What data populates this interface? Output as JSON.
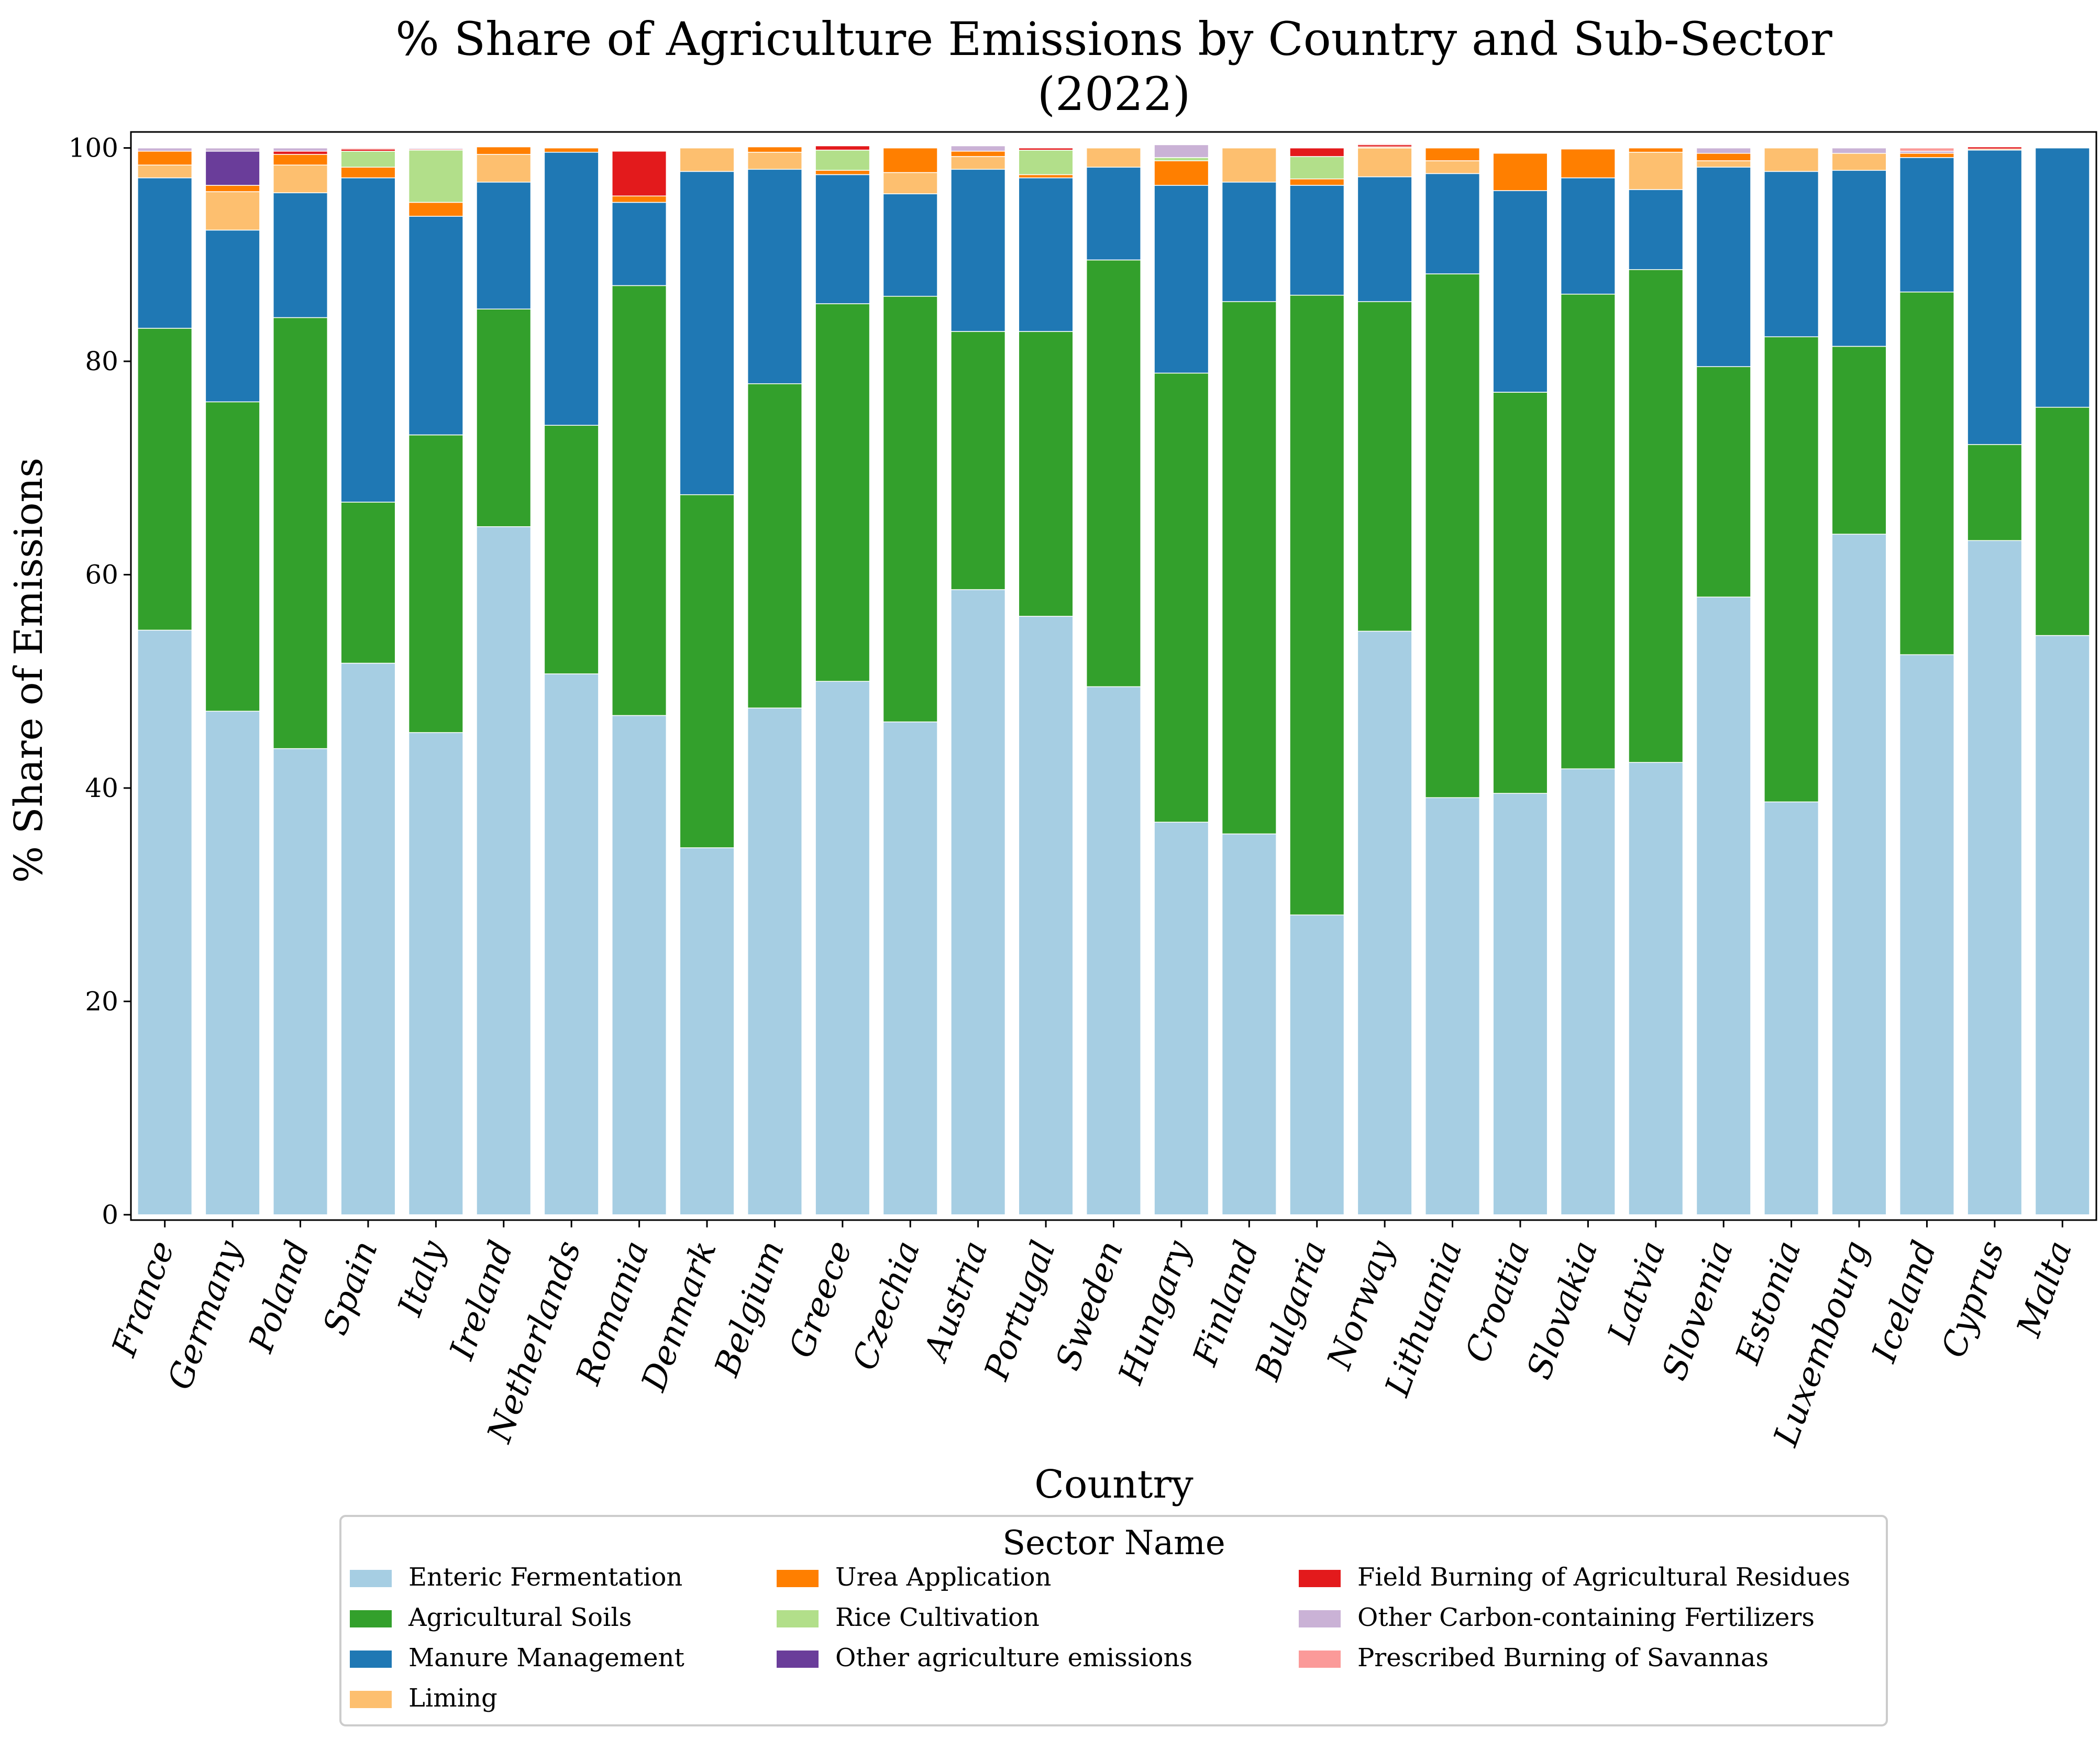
{
  "chart_data": {
    "type": "bar",
    "stacked": true,
    "title": "% Share of Agriculture Emissions by Country and Sub-Sector",
    "subtitle": "(2022)",
    "xlabel": "Country",
    "ylabel": "% Share of Emissions",
    "ylim": [
      0,
      100
    ],
    "yticks": [
      0,
      20,
      40,
      60,
      80,
      100
    ],
    "grid": false,
    "legend_title": "Sector Name",
    "legend_position": "bottom-center",
    "categories": [
      "France",
      "Germany",
      "Poland",
      "Spain",
      "Italy",
      "Ireland",
      "Netherlands",
      "Romania",
      "Denmark",
      "Belgium",
      "Greece",
      "Czechia",
      "Austria",
      "Portugal",
      "Sweden",
      "Hungary",
      "Finland",
      "Bulgaria",
      "Norway",
      "Lithuania",
      "Croatia",
      "Slovakia",
      "Latvia",
      "Slovenia",
      "Estonia",
      "Luxembourg",
      "Iceland",
      "Cyprus",
      "Malta"
    ],
    "series": [
      {
        "name": "Enteric Fermentation",
        "color": "#a6cee3",
        "values": [
          54.8,
          47.2,
          43.7,
          51.7,
          45.2,
          64.5,
          50.7,
          46.8,
          34.4,
          47.5,
          50.0,
          46.2,
          58.6,
          56.1,
          49.5,
          36.8,
          35.7,
          28.1,
          54.7,
          39.1,
          39.5,
          41.8,
          42.4,
          57.9,
          38.7,
          63.8,
          52.5,
          63.2,
          54.3
        ]
      },
      {
        "name": "Agricultural Soils",
        "color": "#33a02c",
        "values": [
          28.3,
          29.0,
          40.4,
          15.1,
          27.9,
          20.4,
          23.3,
          40.3,
          33.1,
          30.4,
          35.4,
          39.9,
          24.2,
          26.7,
          40.0,
          42.1,
          49.9,
          58.1,
          30.9,
          49.1,
          37.6,
          44.5,
          46.2,
          21.6,
          43.6,
          17.6,
          34.0,
          9.0,
          21.4
        ]
      },
      {
        "name": "Manure Management",
        "color": "#1f78b4",
        "values": [
          14.1,
          16.1,
          11.7,
          30.4,
          20.5,
          11.9,
          25.6,
          7.8,
          30.3,
          20.1,
          12.1,
          9.6,
          15.2,
          14.4,
          8.7,
          17.6,
          11.2,
          10.3,
          11.7,
          9.4,
          18.9,
          10.9,
          7.5,
          18.7,
          15.5,
          16.5,
          12.6,
          27.6,
          24.3
        ]
      },
      {
        "name": "Liming",
        "color": "#fdbf6f",
        "values": [
          1.2,
          3.6,
          2.6,
          0.0,
          0.0,
          2.6,
          0.0,
          0.0,
          2.2,
          1.6,
          0.0,
          2.0,
          1.2,
          0.0,
          1.8,
          0.0,
          3.2,
          0.0,
          2.7,
          1.2,
          0.0,
          0.0,
          3.5,
          0.6,
          2.2,
          1.6,
          0.0,
          0.0,
          0.0
        ]
      },
      {
        "name": "Urea Application",
        "color": "#ff7f00",
        "values": [
          1.3,
          0.6,
          1.0,
          1.0,
          1.3,
          0.7,
          0.4,
          0.6,
          0.0,
          0.5,
          0.4,
          2.3,
          0.5,
          0.3,
          0.0,
          2.3,
          0.0,
          0.6,
          0.1,
          1.2,
          3.5,
          2.7,
          0.4,
          0.7,
          0.0,
          0.0,
          0.4,
          0.1,
          0.0
        ]
      },
      {
        "name": "Rice Cultivation",
        "color": "#b2df8a",
        "values": [
          0.0,
          0.0,
          0.0,
          1.5,
          4.9,
          0.0,
          0.0,
          0.0,
          0.0,
          0.0,
          1.9,
          0.0,
          0.0,
          2.3,
          0.0,
          0.3,
          0.0,
          2.1,
          0.0,
          0.0,
          0.0,
          0.0,
          0.0,
          0.0,
          0.0,
          0.0,
          0.0,
          0.0,
          0.0
        ]
      },
      {
        "name": "Other agriculture emissions",
        "color": "#6a3d9a",
        "values": [
          0.0,
          3.2,
          0.0,
          0.0,
          0.0,
          0.0,
          0.0,
          0.0,
          0.0,
          0.0,
          0.0,
          0.0,
          0.0,
          0.0,
          0.0,
          0.0,
          0.0,
          0.0,
          0.0,
          0.0,
          0.0,
          0.0,
          0.0,
          0.0,
          0.0,
          0.0,
          0.0,
          0.0,
          0.0
        ]
      },
      {
        "name": "Field Burning of Agricultural Residues",
        "color": "#e31a1c",
        "values": [
          0.0,
          0.0,
          0.3,
          0.2,
          0.1,
          0.0,
          0.0,
          4.2,
          0.0,
          0.0,
          0.4,
          0.0,
          0.0,
          0.2,
          0.0,
          0.0,
          0.0,
          0.8,
          0.2,
          0.0,
          0.0,
          0.0,
          0.0,
          0.0,
          0.0,
          0.0,
          0.0,
          0.2,
          0.0
        ]
      },
      {
        "name": "Other Carbon-containing Fertilizers",
        "color": "#cab2d6",
        "values": [
          0.3,
          0.3,
          0.3,
          0.0,
          0.1,
          0.0,
          0.0,
          0.0,
          0.0,
          0.0,
          0.0,
          0.0,
          0.5,
          0.0,
          0.0,
          1.2,
          0.0,
          0.0,
          0.0,
          0.0,
          0.0,
          0.0,
          0.0,
          0.5,
          0.0,
          0.5,
          0.2,
          0.0,
          0.0
        ]
      },
      {
        "name": "Prescribed Burning of Savannas",
        "color": "#fb9a99",
        "values": [
          0.0,
          0.0,
          0.0,
          0.1,
          0.0,
          0.0,
          0.0,
          0.0,
          0.0,
          0.0,
          0.0,
          0.0,
          0.0,
          0.0,
          0.0,
          0.0,
          0.0,
          0.0,
          0.1,
          0.0,
          0.0,
          0.0,
          0.0,
          0.0,
          0.0,
          0.0,
          0.3,
          0.0,
          0.0
        ]
      }
    ],
    "legend_columns": [
      [
        "Enteric Fermentation",
        "Agricultural Soils",
        "Manure Management",
        "Liming"
      ],
      [
        "Urea Application",
        "Rice Cultivation",
        "Other agriculture emissions"
      ],
      [
        "Field Burning of Agricultural Residues",
        "Other Carbon-containing Fertilizers",
        "Prescribed Burning of Savannas"
      ]
    ]
  }
}
